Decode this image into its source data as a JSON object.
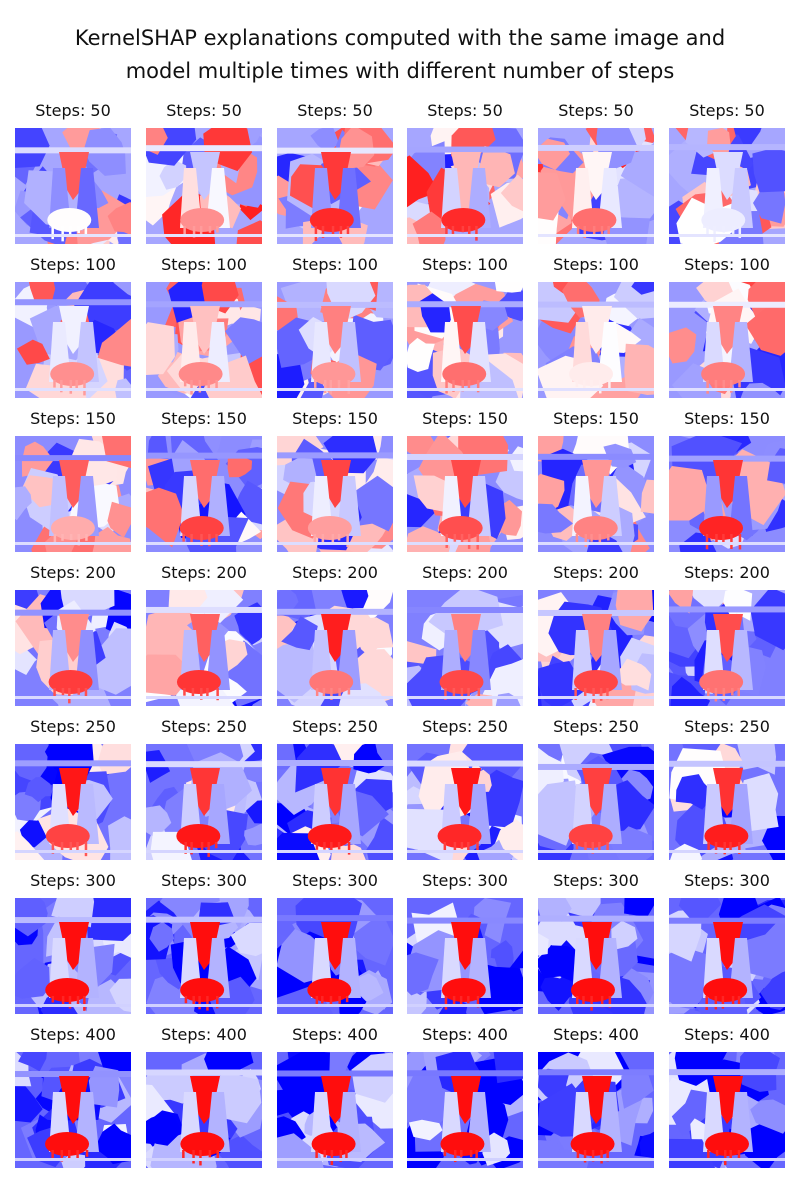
{
  "figure": {
    "title_lines": [
      "KernelSHAP explanations computed with the same image and",
      "model multiple times with different number of steps"
    ],
    "colormap": {
      "negative": "#0000ff",
      "zero": "#ffffff",
      "positive": "#ff0000"
    },
    "rows": [
      {
        "label": "Steps: 50",
        "columns": 6
      },
      {
        "label": "Steps: 100",
        "columns": 6
      },
      {
        "label": "Steps: 150",
        "columns": 6
      },
      {
        "label": "Steps: 200",
        "columns": 6
      },
      {
        "label": "Steps: 250",
        "columns": 6
      },
      {
        "label": "Steps: 300",
        "columns": 6
      },
      {
        "label": "Steps: 400",
        "columns": 6
      }
    ]
  }
}
